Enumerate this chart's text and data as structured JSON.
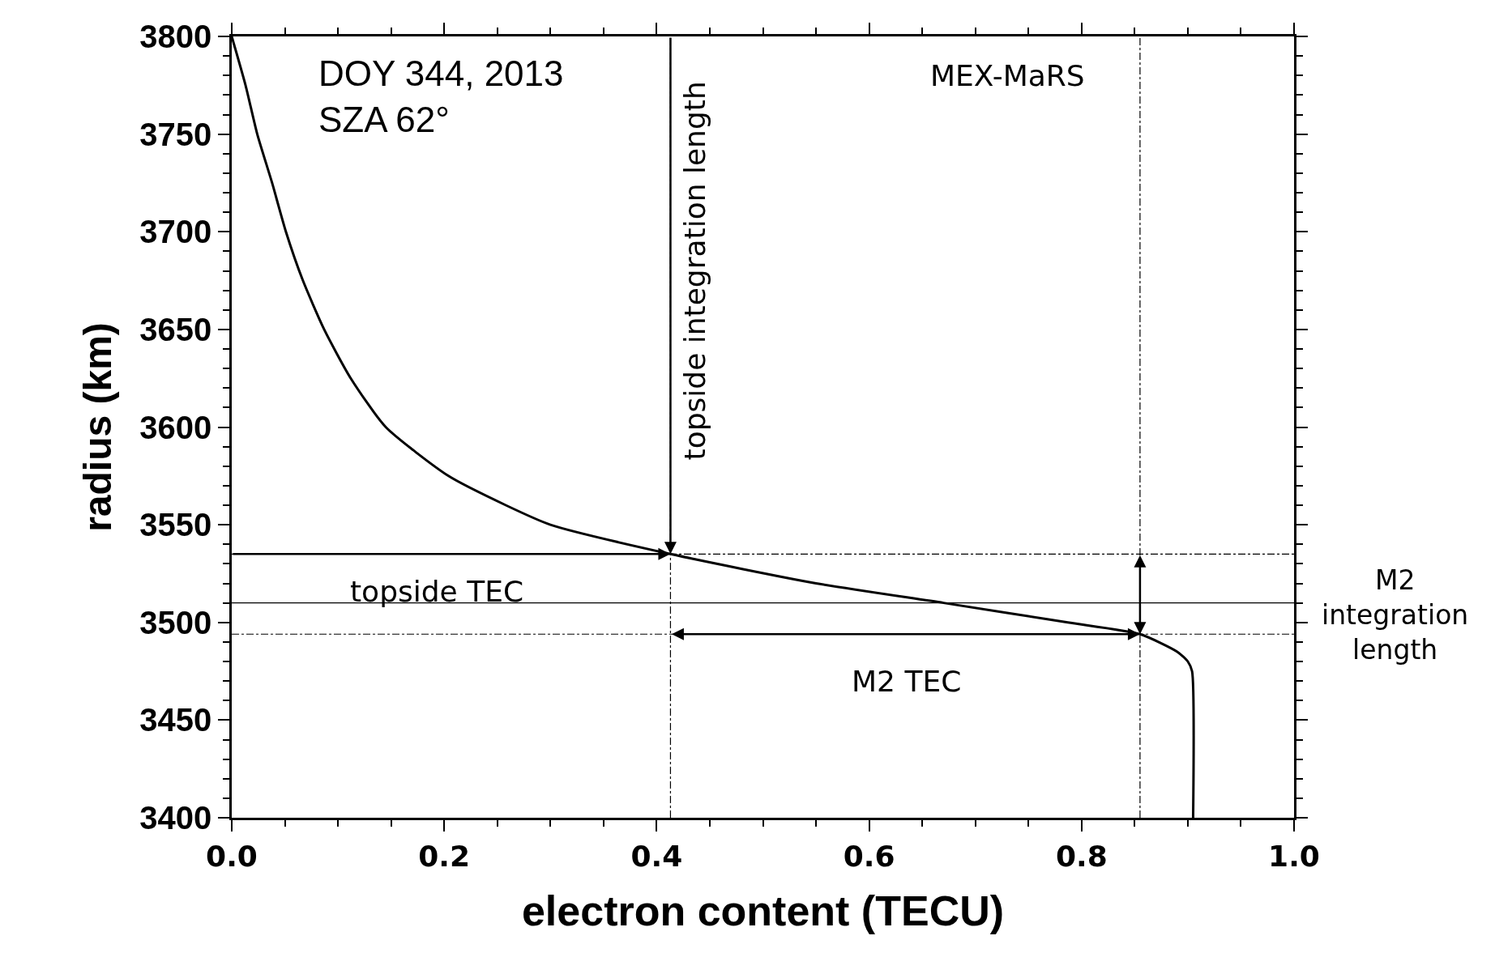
{
  "chart_data": {
    "type": "line",
    "xlabel": "electron content (TECU)",
    "ylabel": "radius (km)",
    "x": [
      0,
      0.013,
      0.024,
      0.038,
      0.051,
      0.067,
      0.087,
      0.112,
      0.145,
      0.204,
      0.258,
      0.3,
      0.413,
      0.55,
      0.67,
      0.787,
      0.855,
      0.89,
      0.9,
      0.904,
      0.905
    ],
    "series": [
      {
        "color": "#000000",
        "values": [
          3800,
          3775,
          3750,
          3725,
          3700,
          3675,
          3650,
          3625,
          3600,
          3575,
          3560,
          3550,
          3535,
          3520,
          3510,
          3500,
          3494,
          3485,
          3480,
          3475,
          3400
        ]
      }
    ],
    "xlim": [
      0,
      1
    ],
    "xticks": [
      {
        "value": 0,
        "label": "0.0"
      },
      0.2,
      0.4,
      0.6,
      0.8,
      {
        "value": 1,
        "label": "1.0"
      }
    ],
    "ylim": [
      3400,
      3800
    ],
    "yticks": [
      3400,
      3450,
      3500,
      3550,
      3600,
      3650,
      3700,
      3750,
      3800
    ],
    "marker": "none",
    "line_style": "solid",
    "ref_lines": [
      {
        "axis": "y",
        "value": 3535,
        "line_style": "dashdot"
      },
      {
        "axis": "y",
        "value": 3510,
        "line_style": "solid"
      },
      {
        "axis": "y",
        "value": 3494,
        "line_style": "dashdot"
      },
      {
        "axis": "x",
        "value": 0.413,
        "line_style": "dashdot"
      },
      {
        "axis": "x",
        "value": 0.855,
        "line_style": "dashdot"
      }
    ],
    "annotations": [
      "DOY 344, 2013\nSZA 62°",
      "MEX-MaRS",
      {
        "text": "topside integration length",
        "x": 0.413,
        "y": 3680
      },
      "topside TEC",
      "M2 TEC",
      "M2\nintegration\nlength"
    ]
  }
}
